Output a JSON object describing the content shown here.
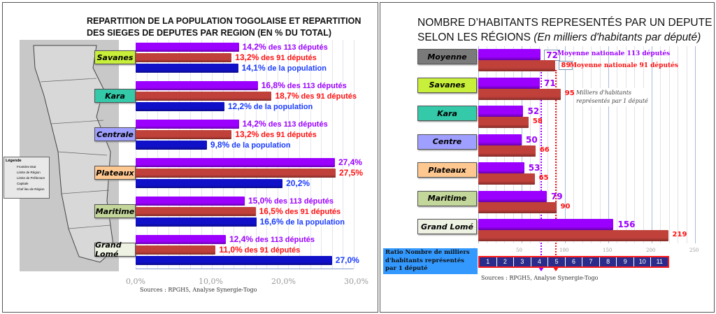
{
  "chart_data": [
    {
      "type": "bar",
      "title": "REPARTITION DE LA POPULATION TOGOLAISE ET REPARTITION DES SIEGES DE DEPUTES PAR REGION (EN % DU TOTAL)",
      "title_lines": [
        "REPARTITION DE LA POPULATION TOGOLAISE ET REPARTITION",
        "DES SIEGES DE DEPUTES PAR REGION (EN % DU TOTAL)"
      ],
      "orientation": "horizontal",
      "xlim": [
        0,
        30
      ],
      "ticks": [
        "0,0%",
        "10,0%",
        "20,0%",
        "30,0%"
      ],
      "categories": [
        "Savanes",
        "Kara",
        "Centrale",
        "Plateaux",
        "Maritime",
        "Grand Lomé"
      ],
      "category_colors": [
        "#c8f03a",
        "#33c9a9",
        "#9f9fff",
        "#ffc890",
        "#c4d79b",
        "#eef2e2"
      ],
      "series": [
        {
          "name": "des 113 députés",
          "color": "#9b00ff",
          "values": [
            14.2,
            16.8,
            14.2,
            27.4,
            15.0,
            12.4
          ],
          "labels": [
            "14,2%",
            "16,8%",
            "14,2%",
            "27,4%",
            "15,0%",
            "12,4%"
          ],
          "suffixes": [
            "des 113 députés",
            "des 113 députés",
            "des 113 députés",
            "",
            "des 113 députés",
            "des 113 députés"
          ]
        },
        {
          "name": "des 91 députés",
          "color": "#c0403a",
          "textcolor": "#ff1010",
          "values": [
            13.2,
            18.7,
            13.2,
            27.5,
            16.5,
            11.0
          ],
          "labels": [
            "13,2%",
            "18,7%",
            "13,2%",
            "27,5%",
            "16,5%",
            "11,0%"
          ],
          "suffixes": [
            "des 91 députés",
            "des 91 députés",
            "des 91 députés",
            "",
            "des 91 députés",
            "des 91 députés"
          ]
        },
        {
          "name": "de la population",
          "color": "#1010c8",
          "textcolor": "#1a3cff",
          "values": [
            14.1,
            12.2,
            9.8,
            20.2,
            16.6,
            27.0
          ],
          "labels": [
            "14,1%",
            "12,2%",
            "9,8%",
            "20,2%",
            "16,6%",
            "27,0%"
          ],
          "suffixes": [
            "de la  population",
            "de la  population",
            "de la  population",
            "",
            "de la  population",
            ""
          ]
        }
      ],
      "source": "Sources : RPGH5, Analyse Synergie-Togo",
      "map_legend": {
        "title": "Légende",
        "items": [
          "Frontière Etat",
          "Limite de Région",
          "Limite de Préfecture",
          "Capitale",
          "Chef lieu de Région"
        ]
      }
    },
    {
      "type": "bar",
      "title_lines": [
        "NOMBRE D’HABITANTS REPRESENTÉS PAR UN DEPUTE",
        "SELON  LES RÉGIONS "
      ],
      "subtitle": "(En milliers d'habitants par député)",
      "orientation": "horizontal",
      "xlim": [
        0,
        250
      ],
      "ticks": [
        "0",
        "50",
        "100",
        "150",
        "200",
        "250"
      ],
      "categories": [
        "Moyenne",
        "Savanes",
        "Kara",
        "Centre",
        "Plateaux",
        "Maritime",
        "Grand Lomé"
      ],
      "category_colors": [
        "#7a7a7a",
        "#c8f03a",
        "#33c9a9",
        "#9f9fff",
        "#ffc890",
        "#c4d79b",
        "#eef2e2"
      ],
      "series": [
        {
          "name": "113 députés",
          "color": "#9b00ff",
          "values": [
            72,
            71,
            52,
            50,
            53,
            79,
            156
          ]
        },
        {
          "name": "91 députés",
          "color": "#c0403a",
          "textcolor": "#ff1010",
          "values": [
            89,
            95,
            58,
            66,
            65,
            90,
            219
          ]
        }
      ],
      "reference_lines": [
        {
          "label": "Moyenne nationale 113 députés",
          "value": 72,
          "color": "#9b00ff"
        },
        {
          "label": "Moyenne nationale 91 députés",
          "value": 89,
          "color": "#ff1010"
        }
      ],
      "annotation": [
        "Milliers d'habitants",
        "représentés par 1 député"
      ],
      "ratio_label": [
        "Ratio Nombre de milliers",
        "d'habitants représentés",
        "par 1 député"
      ],
      "ratio_scale": [
        "1",
        "2",
        "3",
        "4",
        "5",
        "6",
        "7",
        "8",
        "9",
        "10",
        "11"
      ],
      "source": "Sources : RPGH5, Analyse Synergie-Togo"
    }
  ]
}
